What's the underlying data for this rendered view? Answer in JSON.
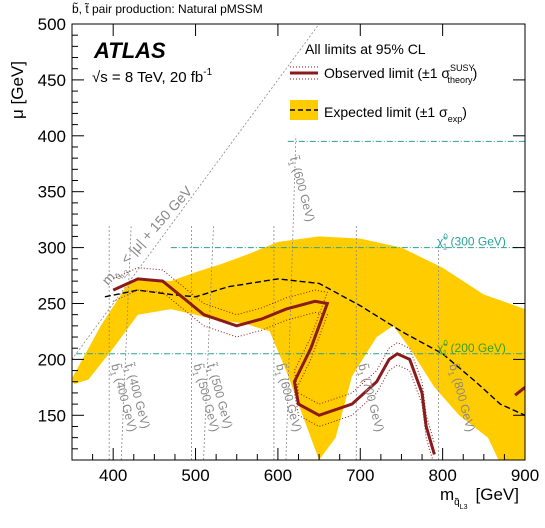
{
  "chart_data": {
    "type": "area",
    "title": "b̃, t̃ pair production: Natural pMSSM",
    "xlabel": "m",
    "xlabel_sub": "q̃",
    "xlabel_subsub": "L3",
    "xlabel_unit": "[GeV]",
    "ylabel": "μ [GeV]",
    "xlim": [
      350,
      900
    ],
    "ylim": [
      110,
      500
    ],
    "xticks": [
      400,
      500,
      600,
      700,
      800,
      900
    ],
    "yticks": [
      150,
      200,
      250,
      300,
      350,
      400,
      450,
      500
    ],
    "atlas_label": "ATLAS",
    "energy_label": "√s = 8 TeV, 20 fb",
    "energy_sup": "-1",
    "limits_note": "All limits at 95% CL",
    "colors": {
      "observed": "#8b1a1a",
      "expected_band": "#ffcc00",
      "teal": "#2aa198",
      "gray": "#888888"
    },
    "legend": {
      "observed": {
        "text": "Observed limit (±1 σ",
        "sup": "SUSY",
        "sub": "theory",
        "close": ")"
      },
      "expected": {
        "text": "Expected limit (±1 σ",
        "sub": "exp",
        "close": ")"
      }
    },
    "diagonal_label": {
      "m": "m",
      "sub": "q̃",
      "subsub": "L3",
      "rest": " < |μ| + 150 GeV"
    },
    "neutralino_lines": [
      {
        "mu": 300,
        "x_from": 470,
        "label": "χ̃",
        "sup": "0",
        "sub": "1",
        "rest": " (300 GeV)"
      },
      {
        "mu": 205,
        "x_from": 355,
        "label": "χ̃",
        "sup": "0",
        "sub": "1",
        "rest": " (200 GeV)"
      }
    ],
    "squark_lines": [
      {
        "mass": 400,
        "type": "b",
        "label": "b̃",
        "sub": "1",
        "rest": " (400 GeV)"
      },
      {
        "mass": 400,
        "type": "t",
        "label": "t̃",
        "sub": "1",
        "rest": " (400 GeV)"
      },
      {
        "mass": 500,
        "type": "b",
        "label": "b̃",
        "sub": "1",
        "rest": " (500 GeV)"
      },
      {
        "mass": 500,
        "type": "t",
        "label": "t̃",
        "sub": "1",
        "rest": " (500 GeV)"
      },
      {
        "mass": 600,
        "type": "b",
        "label": "b̃",
        "sub": "1",
        "rest": " (600 GeV)"
      },
      {
        "mass": 700,
        "type": "b",
        "label": "b̃",
        "sub": "1",
        "rest": " (700 GeV)"
      },
      {
        "mass": 600,
        "type": "t",
        "label": "t̃",
        "sub": "1",
        "rest": " (600 GeV)"
      },
      {
        "mass": 800,
        "type": "b",
        "label": "b̃",
        "sub": "1",
        "rest": " (800 GeV)"
      }
    ],
    "expected_band": [
      [
        350,
        183
      ],
      [
        385,
        230
      ],
      [
        420,
        270
      ],
      [
        440,
        272
      ],
      [
        470,
        270
      ],
      [
        500,
        278
      ],
      [
        530,
        285
      ],
      [
        560,
        293
      ],
      [
        600,
        305
      ],
      [
        650,
        310
      ],
      [
        700,
        308
      ],
      [
        750,
        300
      ],
      [
        800,
        282
      ],
      [
        850,
        258
      ],
      [
        900,
        245
      ],
      [
        900,
        110
      ],
      [
        868,
        110
      ],
      [
        855,
        130
      ],
      [
        820,
        150
      ],
      [
        790,
        175
      ],
      [
        760,
        210
      ],
      [
        740,
        230
      ],
      [
        720,
        220
      ],
      [
        690,
        185
      ],
      [
        670,
        130
      ],
      [
        650,
        110
      ],
      [
        630,
        150
      ],
      [
        610,
        190
      ],
      [
        590,
        225
      ],
      [
        560,
        232
      ],
      [
        520,
        236
      ],
      [
        500,
        240
      ],
      [
        470,
        245
      ],
      [
        430,
        240
      ],
      [
        400,
        210
      ],
      [
        370,
        182
      ],
      [
        353,
        178
      ]
    ],
    "expected_limit": [
      [
        390,
        256
      ],
      [
        430,
        262
      ],
      [
        470,
        258
      ],
      [
        500,
        256
      ],
      [
        540,
        265
      ],
      [
        600,
        272
      ],
      [
        650,
        268
      ],
      [
        700,
        248
      ],
      [
        750,
        225
      ],
      [
        800,
        205
      ],
      [
        840,
        180
      ],
      [
        870,
        160
      ],
      [
        900,
        150
      ]
    ],
    "observed_limit": [
      [
        400,
        262
      ],
      [
        430,
        272
      ],
      [
        460,
        270
      ],
      [
        480,
        258
      ],
      [
        510,
        240
      ],
      [
        550,
        230
      ],
      [
        580,
        236
      ],
      [
        610,
        245
      ],
      [
        645,
        252
      ],
      [
        660,
        250
      ],
      [
        640,
        210
      ],
      [
        620,
        180
      ],
      [
        625,
        160
      ],
      [
        650,
        150
      ],
      [
        690,
        160
      ],
      [
        720,
        180
      ],
      [
        735,
        200
      ],
      [
        745,
        205
      ],
      [
        760,
        200
      ],
      [
        775,
        170
      ],
      [
        780,
        140
      ],
      [
        790,
        115
      ]
    ],
    "observed_limit_2": [
      [
        888,
        168
      ],
      [
        900,
        175
      ]
    ]
  }
}
